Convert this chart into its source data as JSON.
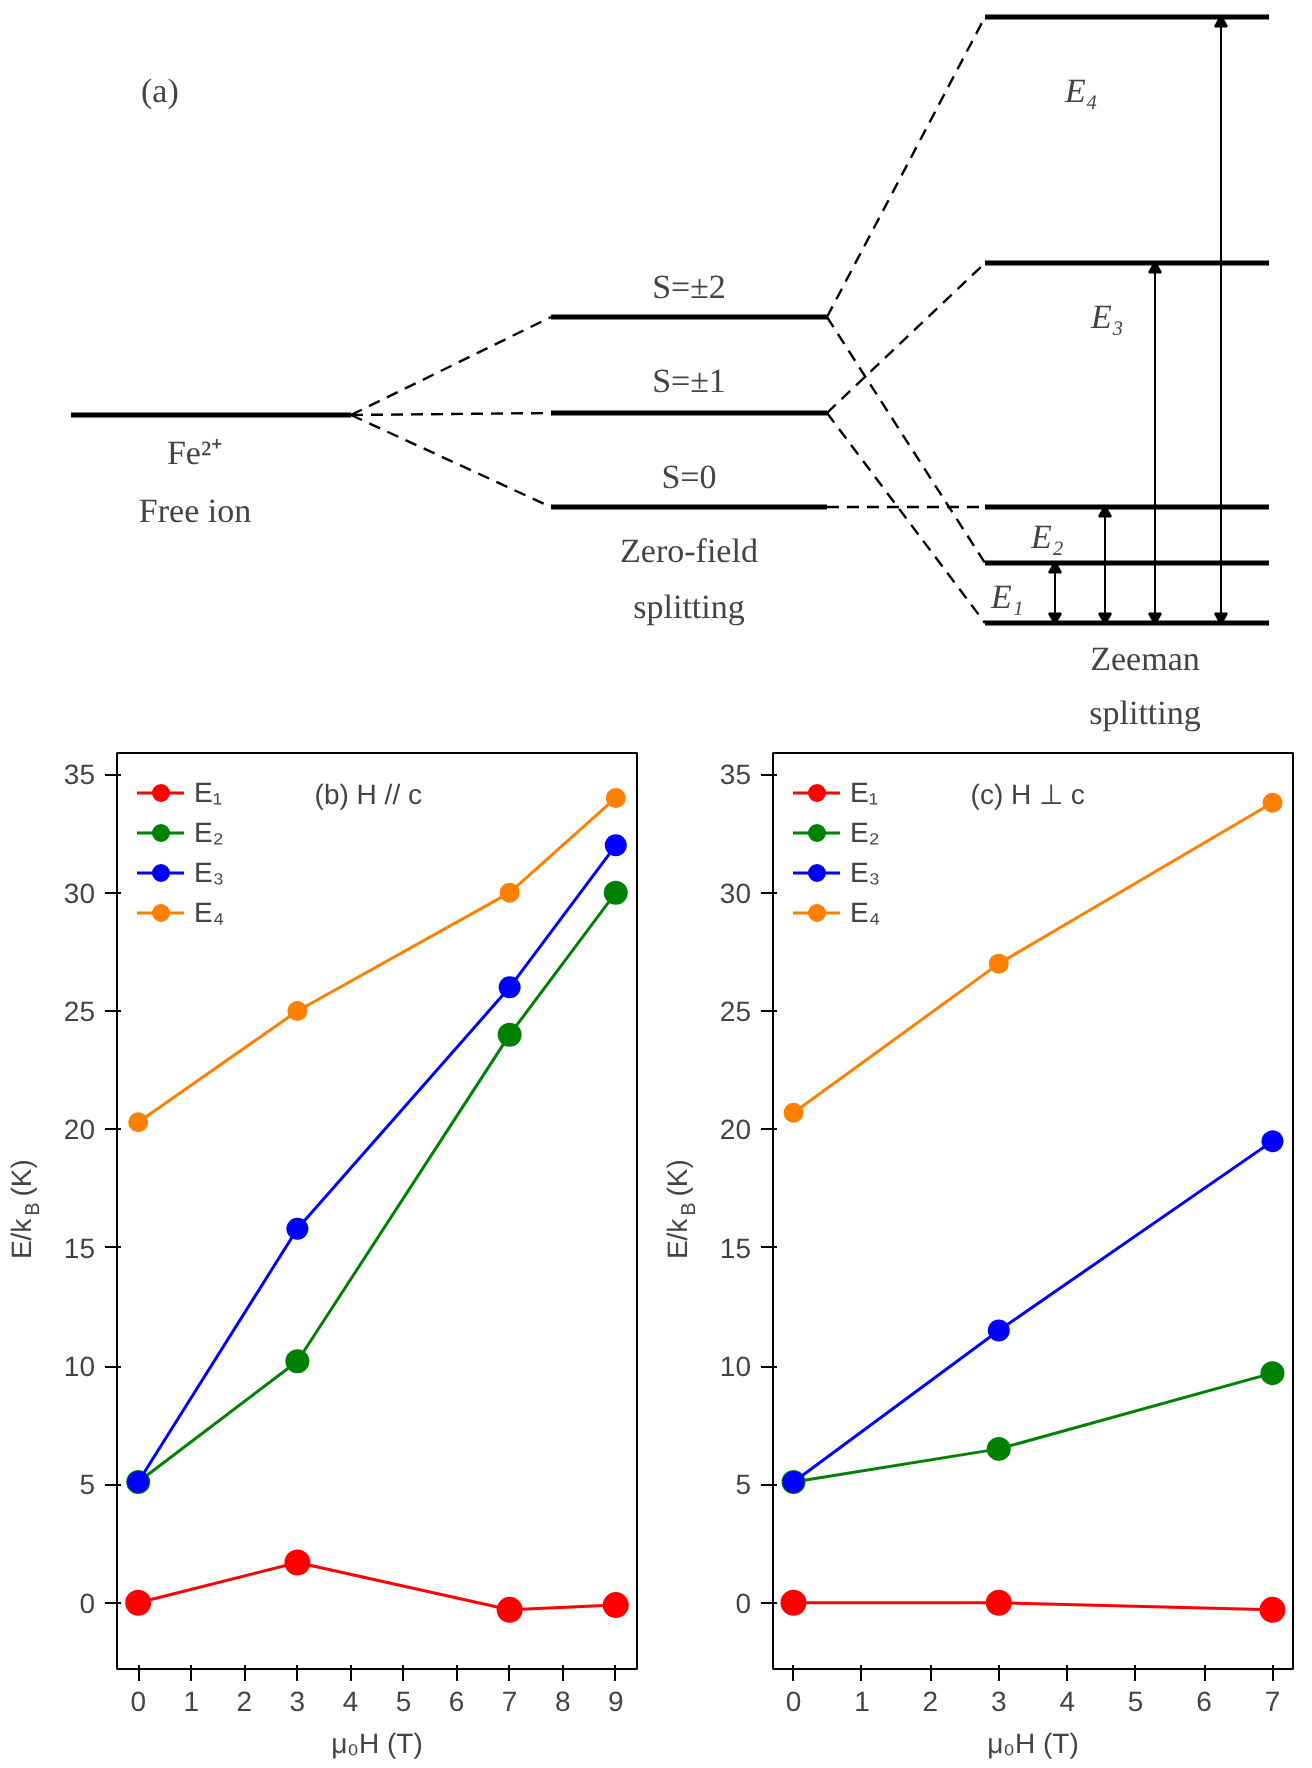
{
  "chart_data": [
    {
      "type": "other",
      "annotations": [
        "(a)",
        "Fe²⁺",
        "Free ion",
        "S=±2",
        "S=±1",
        "S=0",
        "Zero-field",
        "splitting",
        "Zeeman",
        "splitting",
        "E₄",
        "E₃",
        "E₂",
        "E₁"
      ]
    },
    {
      "type": "line",
      "title": "(b) H // c",
      "xlabel": "μ₀H (T)",
      "ylabel": "E/k$_{B}$ (K)",
      "x": [
        0,
        3,
        7,
        9
      ],
      "xlim": [
        -0.4,
        9.4
      ],
      "xticks": [
        0,
        1,
        2,
        3,
        4,
        5,
        6,
        7,
        8,
        9
      ],
      "ylim": [
        -2.8,
        35.9
      ],
      "yticks": [
        0,
        5,
        10,
        15,
        20,
        25,
        30,
        35
      ],
      "marker": "circle",
      "legend": "top left",
      "grid": false,
      "series": [
        {
          "name": "E₁",
          "color": "#ff0000",
          "values": [
            0,
            1.7,
            -0.3,
            -0.1
          ]
        },
        {
          "name": "E₂",
          "color": "#008000",
          "values": [
            5.1,
            10.2,
            24,
            30
          ]
        },
        {
          "name": "E₃",
          "color": "#0000ff",
          "values": [
            5.1,
            15.8,
            26,
            32
          ]
        },
        {
          "name": "E₄",
          "color": "#ff8000",
          "values": [
            20.3,
            25,
            30,
            34
          ]
        }
      ]
    },
    {
      "type": "line",
      "title": "(c) H ⊥ c",
      "xlabel": "μ₀H (T)",
      "ylabel": "E/k$_{B}$ (K)",
      "x": [
        0,
        3,
        7
      ],
      "xlim": [
        -0.3,
        7.3
      ],
      "xticks": [
        0,
        1,
        2,
        3,
        4,
        5,
        6,
        7
      ],
      "ylim": [
        -2.8,
        35.9
      ],
      "yticks": [
        0,
        5,
        10,
        15,
        20,
        25,
        30,
        35
      ],
      "marker": "circle",
      "legend": "top left",
      "grid": false,
      "series": [
        {
          "name": "E₁",
          "color": "#ff0000",
          "values": [
            0,
            0,
            -0.3
          ]
        },
        {
          "name": "E₂",
          "color": "#008000",
          "values": [
            5.1,
            6.5,
            9.7
          ]
        },
        {
          "name": "E₃",
          "color": "#0000ff",
          "values": [
            5.1,
            11.5,
            19.5
          ]
        },
        {
          "name": "E₄",
          "color": "#ff8000",
          "values": [
            20.7,
            27,
            33.8
          ]
        }
      ]
    }
  ]
}
